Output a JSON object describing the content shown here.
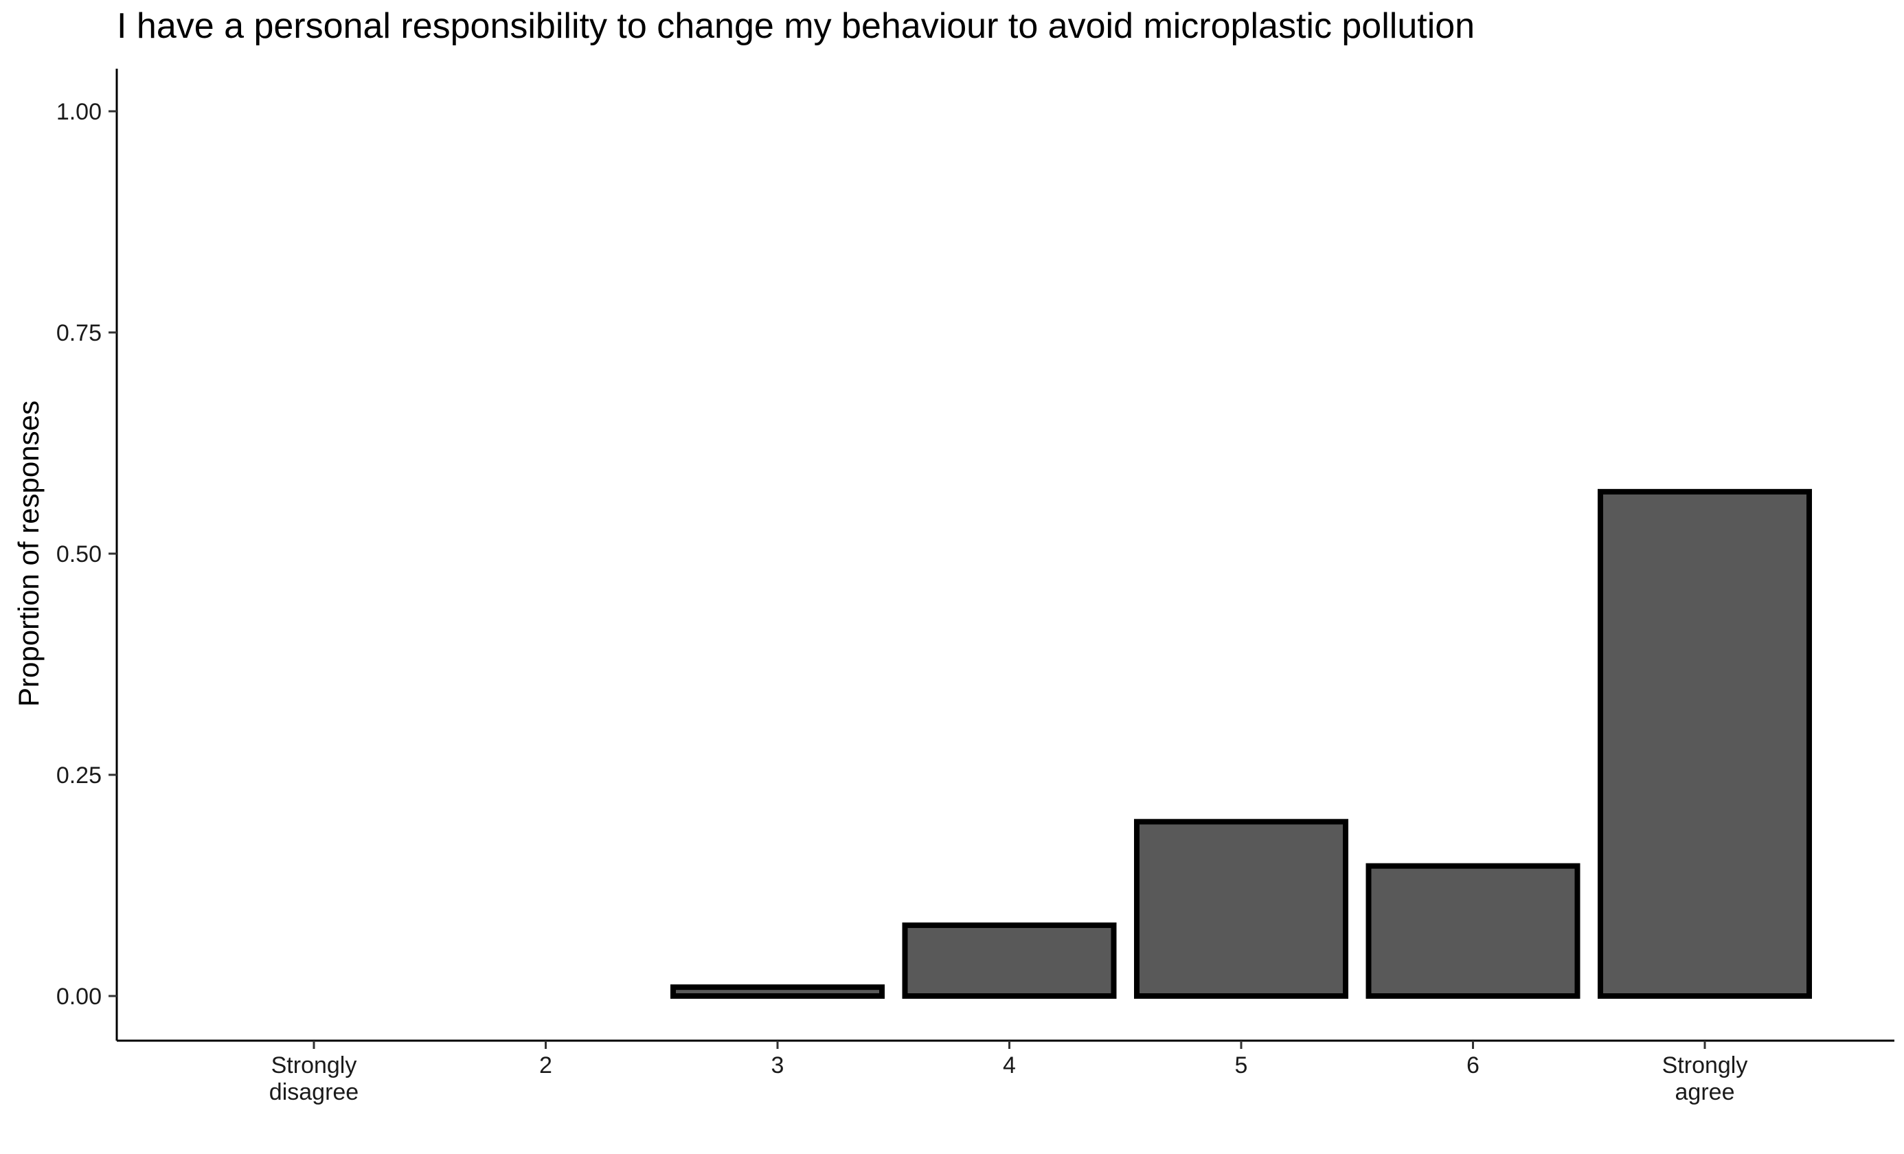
{
  "chart_data": {
    "type": "bar",
    "title": "I have a personal responsibility to change my behaviour to avoid microplastic pollution",
    "xlabel": "",
    "ylabel": "Proportion of responses",
    "categories": [
      [
        "Strongly",
        "disagree"
      ],
      [
        "2"
      ],
      [
        "3"
      ],
      [
        "4"
      ],
      [
        "5"
      ],
      [
        "6"
      ],
      [
        "Strongly",
        "agree"
      ]
    ],
    "values": [
      0,
      0,
      0.01,
      0.08,
      0.197,
      0.147,
      0.57
    ],
    "ylim": [
      -0.05,
      1.05
    ],
    "yticks": [
      0,
      0.25,
      0.5,
      0.75,
      1.0
    ],
    "ytick_labels": [
      "0.00",
      "0.25",
      "0.50",
      "0.75",
      "1.00"
    ],
    "bar_fill": "#595959",
    "bar_stroke": "#000000",
    "grid": false,
    "legend": "none"
  }
}
